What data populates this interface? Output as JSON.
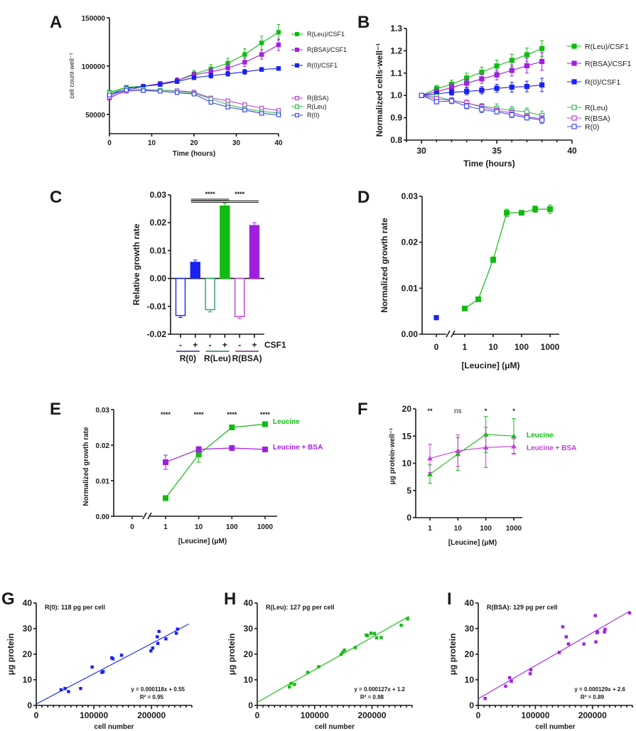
{
  "colors": {
    "leu": "#12bb12",
    "bsa": "#a020e0",
    "r0": "#1a22f0",
    "leu_open": "#3cb85c",
    "bsa_open": "#c040d8",
    "r0_open": "#3a4af0",
    "leu_line_C": "#2aa060",
    "grp_r0": "#30307a",
    "grp_leu": "#2a7a4a",
    "grp_bsa": "#7a2a8a"
  },
  "chart_data": [
    {
      "id": "A",
      "panel_label": "A",
      "type": "line",
      "xlabel": "Time (hours)",
      "ylabel": "cell count·well⁻¹",
      "xlim": [
        0,
        40
      ],
      "ylim": [
        30000,
        150000
      ],
      "xticks": [
        0,
        10,
        20,
        30,
        40
      ],
      "yticks": [
        50000,
        100000,
        150000
      ],
      "x": [
        0,
        4,
        8,
        12,
        16,
        20,
        24,
        28,
        32,
        36,
        40
      ],
      "series": [
        {
          "name": "R(Leu)/CSF1",
          "color": "leu",
          "filled": true,
          "values": [
            73000,
            78000,
            79000,
            81000,
            85000,
            92000,
            97000,
            103000,
            112000,
            124000,
            135000
          ],
          "err": [
            1500,
            1500,
            2000,
            2000,
            3000,
            3500,
            4500,
            5000,
            6000,
            7000,
            8000
          ]
        },
        {
          "name": "R(BSA)/CSF1",
          "color": "bsa",
          "filled": true,
          "values": [
            67000,
            75000,
            79000,
            82000,
            85000,
            91000,
            94000,
            98000,
            104000,
            112000,
            122000
          ],
          "err": [
            1500,
            1500,
            2000,
            2000,
            2500,
            3000,
            3500,
            4000,
            4500,
            5000,
            6000
          ]
        },
        {
          "name": "R(0)/CSF1",
          "color": "r0",
          "filled": true,
          "values": [
            70000,
            77000,
            79000,
            81000,
            84000,
            88000,
            90000,
            92000,
            94000,
            96500,
            97500
          ],
          "err": [
            1500,
            1500,
            1500,
            2000,
            2000,
            2000,
            2500,
            2500,
            2500,
            2000,
            2000
          ]
        },
        {
          "name": "R(BSA)",
          "color": "bsa_open",
          "filled": false,
          "values": [
            68000,
            74000,
            75000,
            75000,
            74500,
            73000,
            67000,
            64000,
            60000,
            56500,
            54000
          ],
          "err": [
            1500,
            1500,
            1500,
            1500,
            1500,
            1500,
            1500,
            1500,
            1500,
            1500,
            1500
          ]
        },
        {
          "name": "R(Leu)",
          "color": "leu_open",
          "filled": false,
          "values": [
            72000,
            76500,
            76000,
            75000,
            74000,
            72000,
            66000,
            60000,
            56000,
            53000,
            51500
          ],
          "err": [
            1500,
            1500,
            1500,
            1500,
            1500,
            1500,
            1500,
            1500,
            1500,
            1500,
            1500
          ]
        },
        {
          "name": "R(0)",
          "color": "r0_open",
          "filled": false,
          "values": [
            70000,
            75000,
            74500,
            74000,
            72500,
            71000,
            62500,
            57500,
            54500,
            51000,
            49500
          ],
          "err": [
            1500,
            1500,
            2000,
            2000,
            1500,
            1500,
            1500,
            1500,
            1500,
            1500,
            1500
          ]
        }
      ],
      "legend": "right"
    },
    {
      "id": "B",
      "panel_label": "B",
      "type": "line",
      "xlabel": "Time (hours)",
      "ylabel": "Normalized cells·well⁻¹",
      "xlim": [
        29,
        40
      ],
      "ylim": [
        0.8,
        1.3
      ],
      "xticks": [
        30,
        35,
        40
      ],
      "yticks": [
        0.8,
        0.9,
        1.0,
        1.1,
        1.2,
        1.3
      ],
      "ytick_labels": [
        "0.8",
        "0.9",
        "1.0",
        "1.1",
        "1.2",
        "1.3"
      ],
      "x": [
        30,
        31,
        32,
        33,
        34,
        35,
        36,
        37,
        38
      ],
      "series": [
        {
          "name": "R(Leu)/CSF1",
          "color": "leu",
          "filled": true,
          "values": [
            1.0,
            1.03,
            1.05,
            1.078,
            1.104,
            1.132,
            1.157,
            1.182,
            1.21
          ],
          "err": [
            0,
            0.015,
            0.018,
            0.022,
            0.023,
            0.026,
            0.028,
            0.03,
            0.035
          ]
        },
        {
          "name": "R(BSA)/CSF1",
          "color": "bsa",
          "filled": true,
          "values": [
            1.0,
            1.017,
            1.035,
            1.055,
            1.074,
            1.092,
            1.112,
            1.133,
            1.152
          ],
          "err": [
            0,
            0.01,
            0.015,
            0.018,
            0.02,
            0.022,
            0.025,
            0.033,
            0.04
          ]
        },
        {
          "name": "R(0)/CSF1",
          "color": "r0",
          "filled": true,
          "values": [
            1.0,
            1.007,
            1.014,
            1.018,
            1.023,
            1.032,
            1.037,
            1.04,
            1.047
          ],
          "err": [
            0,
            0.01,
            0.013,
            0.015,
            0.016,
            0.018,
            0.022,
            0.024,
            0.03
          ]
        },
        {
          "name": "R(Leu)",
          "color": "leu_open",
          "filled": false,
          "values": [
            1.0,
            0.995,
            0.978,
            0.965,
            0.952,
            0.942,
            0.933,
            0.926,
            0.91
          ],
          "err": [
            0,
            0.005,
            0.01,
            0.01,
            0.012,
            0.02,
            0.017,
            0.018,
            0.02
          ]
        },
        {
          "name": "R(BSA)",
          "color": "bsa_open",
          "filled": false,
          "values": [
            1.0,
            0.985,
            0.978,
            0.967,
            0.948,
            0.932,
            0.922,
            0.905,
            0.895
          ],
          "err": [
            0,
            0.01,
            0.012,
            0.012,
            0.012,
            0.012,
            0.014,
            0.014,
            0.014
          ]
        },
        {
          "name": "R(0)",
          "color": "r0_open",
          "filled": false,
          "values": [
            1.0,
            0.972,
            0.975,
            0.952,
            0.937,
            0.927,
            0.913,
            0.9,
            0.889
          ],
          "err": [
            0,
            0.01,
            0.012,
            0.012,
            0.014,
            0.01,
            0.012,
            0.01,
            0.015
          ]
        }
      ],
      "legend": "right"
    },
    {
      "id": "C",
      "panel_label": "C",
      "type": "bar",
      "ylabel": "Relative growth rate",
      "ylim": [
        -0.02,
        0.03
      ],
      "yticks": [
        -0.02,
        -0.01,
        0.0,
        0.01,
        0.02,
        0.03
      ],
      "ytick_labels": [
        "-0.02",
        "-0.01",
        "0.00",
        "0.01",
        "0.02",
        "0.03"
      ],
      "categories": [
        "-",
        "+",
        "-",
        "+",
        "-",
        "+"
      ],
      "csf1_label": "CSF1",
      "groups": [
        "R(0)",
        "R(Leu)",
        "R(BSA)"
      ],
      "bars": [
        {
          "group": "R(0)",
          "csf1": "-",
          "value": -0.0133,
          "err": 0.0007,
          "color": "r0",
          "filled": false
        },
        {
          "group": "R(0)",
          "csf1": "+",
          "value": 0.0058,
          "err": 0.0008,
          "color": "r0",
          "filled": true
        },
        {
          "group": "R(Leu)",
          "csf1": "-",
          "value": -0.0112,
          "err": 0.0008,
          "color": "leu_line_C",
          "filled": false
        },
        {
          "group": "R(Leu)",
          "csf1": "+",
          "value": 0.026,
          "err": 0.001,
          "color": "leu",
          "filled": true
        },
        {
          "group": "R(BSA)",
          "csf1": "-",
          "value": -0.0137,
          "err": 0.0007,
          "color": "bsa_open",
          "filled": false
        },
        {
          "group": "R(BSA)",
          "csf1": "+",
          "value": 0.019,
          "err": 0.001,
          "color": "bsa",
          "filled": true
        }
      ],
      "significance": [
        {
          "from_bar": 1,
          "to_bar": 3,
          "label": "****"
        },
        {
          "from_bar": 1,
          "to_bar": 5,
          "label": "****"
        }
      ]
    },
    {
      "id": "D",
      "panel_label": "D",
      "type": "line",
      "xscale": "log-with-zero-break",
      "xlabel": "[Leucine] (μM)",
      "ylabel": "Normalized growth rate",
      "ylim": [
        0,
        0.03
      ],
      "yticks": [
        0,
        0.01,
        0.02,
        0.03
      ],
      "ytick_labels": [
        "0.00",
        "0.01",
        "0.02",
        "0.03"
      ],
      "xticks": [
        0,
        1,
        10,
        100,
        1000
      ],
      "xtick_labels": [
        "0",
        "1",
        "10",
        "100",
        "1000"
      ],
      "zero_point": {
        "x": 0,
        "y": 0.0036,
        "err": 0.0004,
        "color": "r0"
      },
      "series": [
        {
          "name": "Leucine",
          "color": "leu",
          "filled": true,
          "x": [
            1,
            3,
            10,
            30,
            100,
            300,
            1000
          ],
          "values": [
            0.0056,
            0.0076,
            0.0162,
            0.0264,
            0.0264,
            0.0272,
            0.0272
          ],
          "err": [
            0.0002,
            0.0003,
            0.0006,
            0.0008,
            0.0004,
            0.0007,
            0.0009
          ]
        }
      ]
    },
    {
      "id": "E",
      "panel_label": "E",
      "type": "line",
      "xscale": "log-with-zero-break",
      "xlabel": "[Leucine] (μM)",
      "ylabel": "Normalized growth rate",
      "ylim": [
        0,
        0.03
      ],
      "yticks": [
        0,
        0.01,
        0.02,
        0.03
      ],
      "ytick_labels": [
        "0.00",
        "0.01",
        "0.02",
        "0.03"
      ],
      "xticks": [
        0,
        1,
        10,
        100,
        1000
      ],
      "xtick_labels": [
        "0",
        "1",
        "10",
        "100",
        "1000"
      ],
      "series": [
        {
          "name": "Leucine",
          "color": "leu",
          "filled": true,
          "x": [
            1,
            10,
            100,
            1000
          ],
          "values": [
            0.0051,
            0.0174,
            0.025,
            0.0259
          ],
          "err": [
            0.0003,
            0.0022,
            0.0004,
            0.0004
          ]
        },
        {
          "name": "Leucine + BSA",
          "color": "bsa",
          "filled": true,
          "x": [
            1,
            10,
            100,
            1000
          ],
          "values": [
            0.0152,
            0.0188,
            0.0192,
            0.0188
          ],
          "err": [
            0.002,
            0.0008,
            0.0006,
            0.0004
          ]
        }
      ],
      "annotations": [
        "****",
        "****",
        "****",
        "****"
      ]
    },
    {
      "id": "F",
      "panel_label": "F",
      "type": "line",
      "xscale": "log",
      "xlabel": "[Leucine] (μM)",
      "ylabel": "μg protein·well⁻¹",
      "ylim": [
        0,
        20
      ],
      "yticks": [
        0,
        5,
        10,
        15,
        20
      ],
      "xticks": [
        1,
        10,
        100,
        1000
      ],
      "xtick_labels": [
        "1",
        "10",
        "100",
        "1000"
      ],
      "series": [
        {
          "name": "Leucine",
          "color": "leu",
          "filled": true,
          "marker": "triangle",
          "x": [
            1,
            10,
            100,
            1000
          ],
          "values": [
            8.0,
            11.7,
            15.3,
            15.0
          ],
          "err": [
            1.7,
            3.0,
            3.3,
            3.2
          ]
        },
        {
          "name": "Leucine + BSA",
          "color": "bsa_open",
          "filled": true,
          "marker": "triangle",
          "x": [
            1,
            10,
            100,
            1000
          ],
          "values": [
            10.9,
            12.3,
            12.9,
            13.1
          ],
          "err": [
            2.6,
            2.9,
            3.7,
            1.4
          ]
        }
      ],
      "annotations": [
        "**",
        "ns",
        "*",
        "*"
      ]
    },
    {
      "id": "G",
      "panel_label": "G",
      "type": "scatter",
      "xlabel": "cell number",
      "ylabel": "μg protein",
      "xlim": [
        0,
        270000
      ],
      "ylim": [
        0,
        40
      ],
      "xticks": [
        0,
        100000,
        200000
      ],
      "yticks": [
        0,
        10,
        20,
        30,
        40
      ],
      "title": "R(0): 118 pg per cell",
      "equation": "y = 0.000118x + 0.55",
      "r2": "R² = 0.95",
      "fit": {
        "slope": 0.000118,
        "intercept": 0.55
      },
      "color": "r0",
      "points": [
        [
          43000,
          6.1
        ],
        [
          50000,
          6.6
        ],
        [
          56000,
          5.4
        ],
        [
          77000,
          6.6
        ],
        [
          97000,
          15.0
        ],
        [
          114000,
          12.9
        ],
        [
          116000,
          13.2
        ],
        [
          131000,
          18.6
        ],
        [
          133000,
          18.2
        ],
        [
          148000,
          19.6
        ],
        [
          199000,
          21.3
        ],
        [
          202000,
          22.4
        ],
        [
          210000,
          26.8
        ],
        [
          211000,
          24.2
        ],
        [
          213000,
          28.9
        ],
        [
          225000,
          26.0
        ],
        [
          243000,
          28.2
        ],
        [
          245000,
          29.8
        ]
      ]
    },
    {
      "id": "H",
      "panel_label": "H",
      "type": "scatter",
      "xlabel": "cell number",
      "ylabel": "μg protein",
      "xlim": [
        0,
        270000
      ],
      "ylim": [
        0,
        40
      ],
      "xticks": [
        0,
        100000,
        200000
      ],
      "yticks": [
        0,
        10,
        20,
        30,
        40
      ],
      "title": "R(Leu): 127 pg per cell",
      "equation": "y = 0.000127x + 1.2",
      "r2": "R² = 0.98",
      "fit": {
        "slope": 0.000127,
        "intercept": 1.2
      },
      "color": "leu",
      "points": [
        [
          56000,
          7.2
        ],
        [
          59000,
          8.6
        ],
        [
          65000,
          8.2
        ],
        [
          88000,
          12.9
        ],
        [
          107000,
          15.1
        ],
        [
          146000,
          19.9
        ],
        [
          149000,
          20.8
        ],
        [
          152000,
          21.6
        ],
        [
          171000,
          22.6
        ],
        [
          190000,
          27.5
        ],
        [
          192000,
          27.2
        ],
        [
          198000,
          28.2
        ],
        [
          204000,
          28.1
        ],
        [
          208000,
          26.4
        ],
        [
          216000,
          26.5
        ],
        [
          251000,
          31.3
        ],
        [
          262000,
          33.8
        ]
      ]
    },
    {
      "id": "I",
      "panel_label": "I",
      "type": "scatter",
      "xlabel": "cell number",
      "ylabel": "μg protein",
      "xlim": [
        0,
        270000
      ],
      "ylim": [
        0,
        40
      ],
      "xticks": [
        0,
        100000,
        200000
      ],
      "yticks": [
        0,
        10,
        20,
        30,
        40
      ],
      "title": "R(BSA): 129 pg per cell",
      "equation": "y = 0.000129x + 2.6",
      "r2": "R² = 0.89",
      "fit": {
        "slope": 0.000129,
        "intercept": 2.6
      },
      "color": "bsa",
      "points": [
        [
          12000,
          2.7
        ],
        [
          48000,
          7.5
        ],
        [
          55000,
          10.8
        ],
        [
          58000,
          9.4
        ],
        [
          91000,
          12.4
        ],
        [
          92000,
          13.9
        ],
        [
          142000,
          20.7
        ],
        [
          148000,
          30.7
        ],
        [
          154000,
          26.8
        ],
        [
          158000,
          24.0
        ],
        [
          185000,
          24.0
        ],
        [
          205000,
          35.1
        ],
        [
          206000,
          24.8
        ],
        [
          208000,
          28.4
        ],
        [
          209000,
          28.7
        ],
        [
          221000,
          28.7
        ],
        [
          222000,
          29.7
        ],
        [
          265000,
          36.1
        ]
      ]
    }
  ]
}
